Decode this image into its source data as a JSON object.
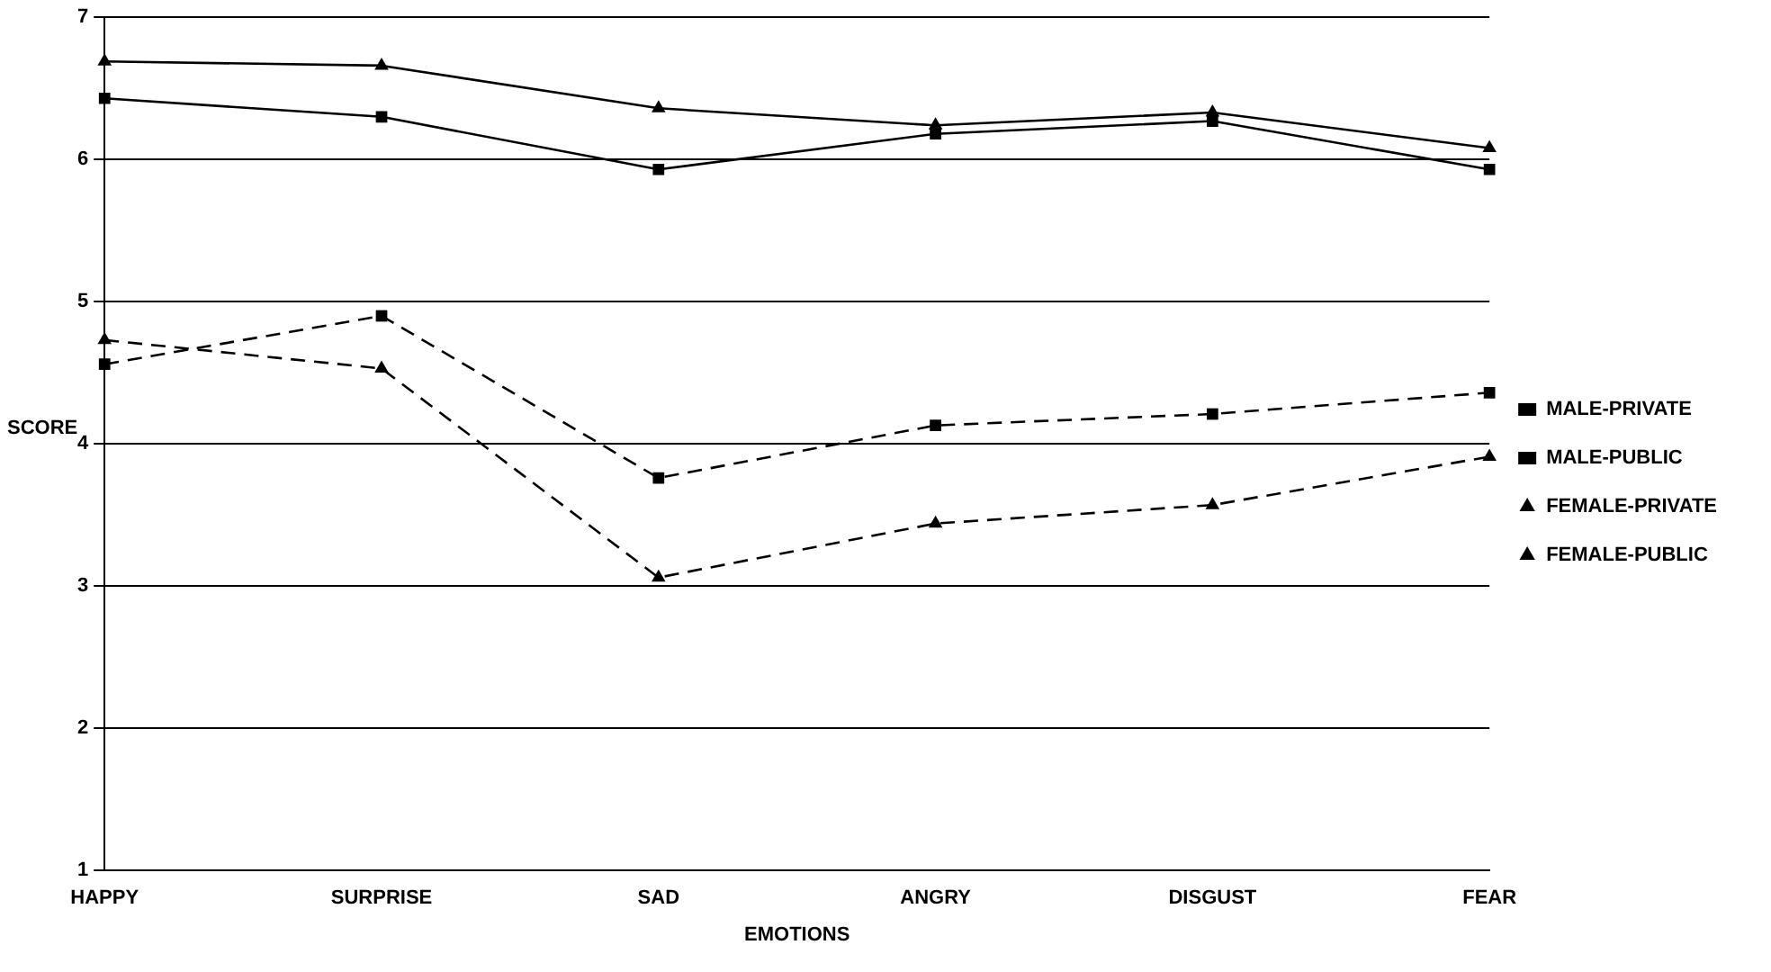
{
  "chart_data": {
    "type": "line",
    "xlabel": "EMOTIONS",
    "ylabel": "SCORE",
    "categories": [
      "HAPPY",
      "SURPRISE",
      "SAD",
      "ANGRY",
      "DISGUST",
      "FEAR"
    ],
    "ylim": [
      1,
      7
    ],
    "yticks": [
      1,
      2,
      3,
      4,
      5,
      6,
      7
    ],
    "grid": "y",
    "legend": "right",
    "series": [
      {
        "name": "MALE-PRIVATE",
        "color": "#000000",
        "marker": "square",
        "line_style": "solid",
        "values": [
          6.43,
          6.3,
          5.93,
          6.18,
          6.27,
          5.93
        ]
      },
      {
        "name": "MALE-PUBLIC",
        "color": "#000000",
        "marker": "square",
        "line_style": "dashed",
        "values": [
          4.56,
          4.9,
          3.76,
          4.13,
          4.21,
          4.36
        ]
      },
      {
        "name": "FEMALE-PRIVATE",
        "color": "#000000",
        "marker": "triangle",
        "line_style": "solid",
        "values": [
          6.69,
          6.66,
          6.36,
          6.24,
          6.33,
          6.08
        ]
      },
      {
        "name": "FEMALE-PUBLIC",
        "color": "#000000",
        "marker": "triangle",
        "line_style": "dashed",
        "values": [
          4.73,
          4.53,
          3.06,
          3.44,
          3.57,
          3.91
        ]
      }
    ]
  }
}
